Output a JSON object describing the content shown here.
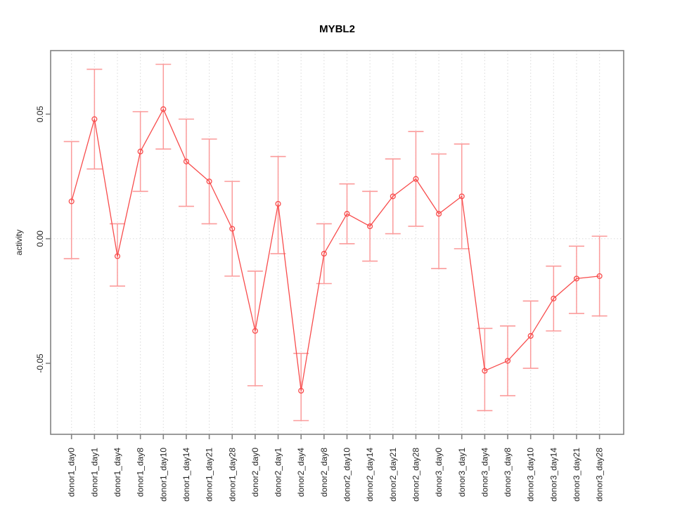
{
  "page": {
    "background": "#ffffff"
  },
  "chart_data": {
    "type": "line",
    "title": "MYBL2",
    "xlabel": "",
    "ylabel": "activity",
    "categories": [
      "donor1_day0",
      "donor1_day1",
      "donor1_day4",
      "donor1_day8",
      "donor1_day10",
      "donor1_day14",
      "donor1_day21",
      "donor1_day28",
      "donor2_day0",
      "donor2_day1",
      "donor2_day4",
      "donor2_day8",
      "donor2_day10",
      "donor2_day14",
      "donor2_day21",
      "donor2_day28",
      "donor3_day0",
      "donor3_day1",
      "donor3_day4",
      "donor3_day8",
      "donor3_day10",
      "donor3_day14",
      "donor3_day21",
      "donor3_day28"
    ],
    "values": [
      0.015,
      0.048,
      -0.007,
      0.035,
      0.052,
      0.031,
      0.023,
      0.004,
      -0.037,
      0.014,
      -0.061,
      -0.006,
      0.01,
      0.005,
      0.017,
      0.024,
      0.01,
      0.017,
      -0.053,
      -0.049,
      -0.039,
      -0.024,
      -0.016,
      -0.015
    ],
    "error_high": [
      0.039,
      0.068,
      0.006,
      0.051,
      0.07,
      0.048,
      0.04,
      0.023,
      -0.013,
      0.033,
      -0.046,
      0.006,
      0.022,
      0.019,
      0.032,
      0.043,
      0.034,
      0.038,
      -0.036,
      -0.035,
      -0.025,
      -0.011,
      -0.003,
      0.001
    ],
    "error_low": [
      -0.008,
      0.028,
      -0.019,
      0.019,
      0.036,
      0.013,
      0.006,
      -0.015,
      -0.059,
      -0.006,
      -0.073,
      -0.018,
      -0.002,
      -0.009,
      0.002,
      0.005,
      -0.012,
      -0.004,
      -0.069,
      -0.063,
      -0.052,
      -0.037,
      -0.03,
      -0.031
    ],
    "yticks": [
      -0.05,
      0.0,
      0.05
    ],
    "ytick_labels": [
      "-0.05",
      "0.00",
      "0.05"
    ],
    "ylim": [
      -0.0785,
      0.0755
    ],
    "grid": "vertical dotted gridline per category, dotted horizontal line at y=0",
    "legend": "none",
    "marker": "open-circle",
    "colors": {
      "series_line": "#f84c4c",
      "error_bar": "#fb9b9b",
      "gridline": "#dfdfdf",
      "axis": "#828282",
      "tick_text": "#222222",
      "title_text": "#000000"
    }
  }
}
